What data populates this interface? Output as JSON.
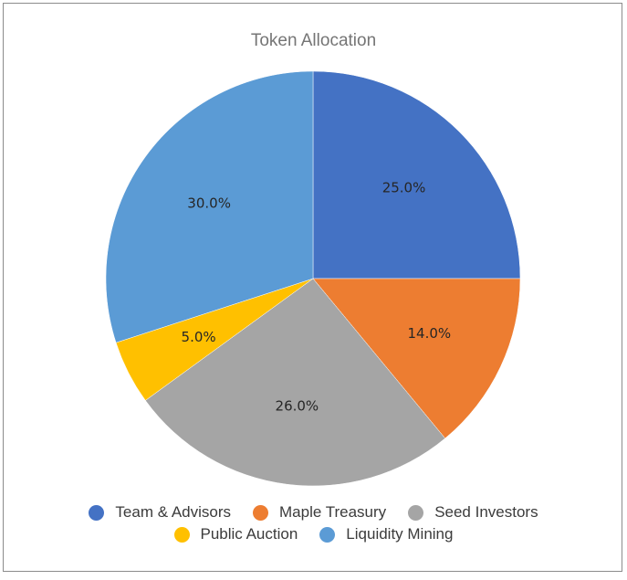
{
  "chart_data": {
    "type": "pie",
    "title": "Token Allocation",
    "categories": [
      "Team & Advisors",
      "Maple Treasury",
      "Seed Investors",
      "Public Auction",
      "Liquidity Mining"
    ],
    "values": [
      25.0,
      14.0,
      26.0,
      5.0,
      30.0
    ],
    "labels": [
      "25.0%",
      "14.0%",
      "26.0%",
      "5.0%",
      "30.0%"
    ],
    "colors": [
      "#4472C4",
      "#ED7D31",
      "#A5A5A5",
      "#FFC000",
      "#5B9BD5"
    ],
    "start_angle": "12 o'clock, clockwise",
    "legend_position": "bottom"
  },
  "legend": {
    "row1": [
      {
        "label": "Team & Advisors",
        "color": "#4472C4"
      },
      {
        "label": "Maple Treasury",
        "color": "#ED7D31"
      },
      {
        "label": "Seed Investors",
        "color": "#A5A5A5"
      }
    ],
    "row2": [
      {
        "label": "Public Auction",
        "color": "#FFC000"
      },
      {
        "label": "Liquidity Mining",
        "color": "#5B9BD5"
      }
    ]
  }
}
